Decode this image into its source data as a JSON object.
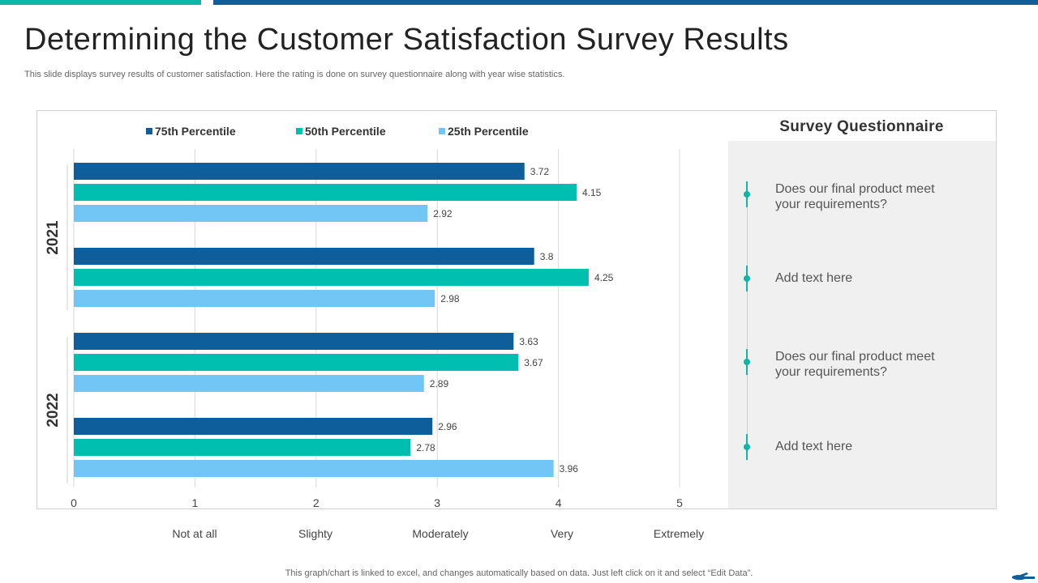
{
  "slide": {
    "title": "Determining the Customer Satisfaction Survey Results",
    "subtitle": "This slide displays survey results of customer satisfaction. Here the rating is done on survey questionnaire along with year wise statistics.",
    "footnote": "This graph/chart is linked to excel,  and changes automatically based on data. Just left click on it and select “Edit Data”."
  },
  "colors": {
    "teal": "#0fb5a7",
    "blue": "#0f5e9c"
  },
  "chart_data": {
    "type": "bar",
    "orientation": "horizontal",
    "title": "",
    "xlim": [
      0,
      5
    ],
    "x_ticks": [
      "0",
      "1",
      "2",
      "3",
      "4",
      "5"
    ],
    "groups": [
      {
        "name": "2021",
        "categories": [
          "",
          ""
        ]
      },
      {
        "name": "2022",
        "categories": [
          "",
          ""
        ]
      }
    ],
    "series": [
      {
        "name": "75th  Percentile",
        "color": "#0f5e9c",
        "values": [
          3.72,
          3.8,
          3.63,
          2.96
        ],
        "labels": [
          "3.72",
          "3.8",
          "3.63",
          "2.96"
        ]
      },
      {
        "name": "50th Percentile",
        "color": "#00bfb0",
        "values": [
          4.15,
          4.25,
          3.67,
          2.78
        ],
        "labels": [
          "4.15",
          "4.25",
          "3.67",
          "2.78"
        ]
      },
      {
        "name": "25th Percentile",
        "color": "#72c6f5",
        "values": [
          2.92,
          2.98,
          2.89,
          3.96
        ],
        "labels": [
          "2.92",
          "2.98",
          "2.89",
          "3.96"
        ]
      }
    ],
    "rating_labels": [
      "Not at all",
      "Slighty",
      "Moderately",
      "Very",
      "Extremely"
    ],
    "gridlines": true,
    "legend_position": "top"
  },
  "questionnaire": {
    "title": "Survey Questionnaire",
    "items": [
      "Does our final product meet your requirements?",
      "Add text here",
      "Does our final product meet your requirements?",
      "Add text here"
    ]
  }
}
